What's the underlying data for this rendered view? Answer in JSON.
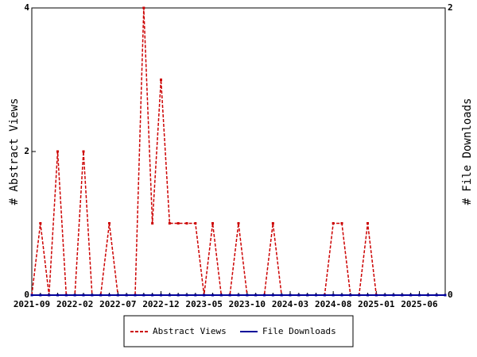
{
  "chart_data": {
    "type": "line",
    "categories": [
      "2021-09",
      null,
      null,
      null,
      null,
      "2022-02",
      null,
      null,
      null,
      null,
      "2022-07",
      null,
      null,
      null,
      null,
      "2022-12",
      null,
      null,
      null,
      null,
      "2023-05",
      null,
      null,
      null,
      null,
      "2023-10",
      null,
      null,
      null,
      null,
      "2024-03",
      null,
      null,
      null,
      null,
      "2024-08",
      null,
      null,
      null,
      null,
      "2025-01",
      null,
      null,
      null,
      null,
      "2025-06",
      null,
      null,
      null
    ],
    "series": [
      {
        "name": "Abstract Views",
        "color": "#cc0000",
        "axis": "y",
        "values": [
          0,
          1,
          0,
          2,
          0,
          0,
          2,
          0,
          0,
          1,
          0,
          0,
          0,
          4,
          1,
          3,
          1,
          1,
          1,
          1,
          0,
          1,
          0,
          0,
          1,
          0,
          0,
          0,
          1,
          0,
          0,
          0,
          0,
          0,
          0,
          1,
          1,
          0,
          0,
          1,
          0,
          0,
          0,
          0,
          0,
          0,
          0,
          0,
          0
        ]
      },
      {
        "name": "File Downloads",
        "color": "#000099",
        "axis": "y2",
        "values": [
          0,
          0,
          0,
          0,
          0,
          0,
          0,
          0,
          0,
          0,
          0,
          0,
          0,
          0,
          0,
          0,
          0,
          0,
          0,
          0,
          0,
          0,
          0,
          0,
          0,
          0,
          0,
          0,
          0,
          0,
          0,
          0,
          0,
          0,
          0,
          0,
          0,
          0,
          0,
          0,
          0,
          0,
          0,
          0,
          0,
          0,
          0,
          0,
          0
        ]
      }
    ],
    "ylabel": "# Abstract Views",
    "y2label": "# File Downloads",
    "ylim": [
      0,
      4
    ],
    "yticks": [
      0,
      2,
      4
    ],
    "y2lim": [
      0,
      2
    ],
    "y2ticks": [
      0,
      2
    ],
    "legend": "bottom"
  }
}
